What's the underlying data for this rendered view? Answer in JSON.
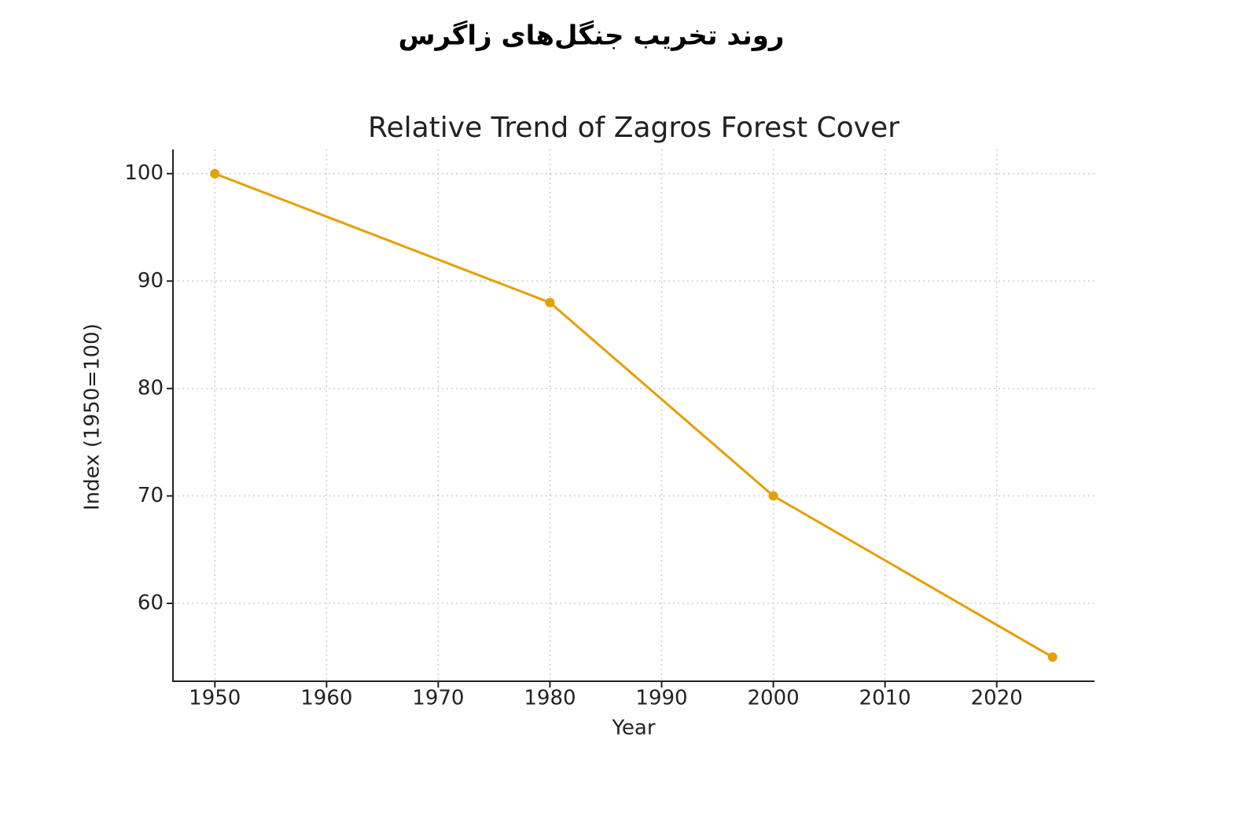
{
  "chart_data": {
    "type": "line",
    "suptitle": "روند تخریب جنگل‌های زاگرس",
    "title": "Relative Trend of Zagros Forest Cover",
    "x_label": "Year",
    "y_label": "Index (1950=100)",
    "x": [
      1950,
      1980,
      2000,
      2025
    ],
    "series": [
      {
        "name": "Index",
        "color": "#e69f00",
        "values": [
          100,
          88,
          70,
          55
        ]
      }
    ],
    "xlim": [
      1946.25,
      2028.75
    ],
    "xticks": [
      1950,
      1960,
      1970,
      1980,
      1990,
      2000,
      2010,
      2020
    ],
    "ylim": [
      52.75,
      102.25
    ],
    "yticks": [
      60,
      70,
      80,
      90,
      100
    ],
    "grid": true
  }
}
